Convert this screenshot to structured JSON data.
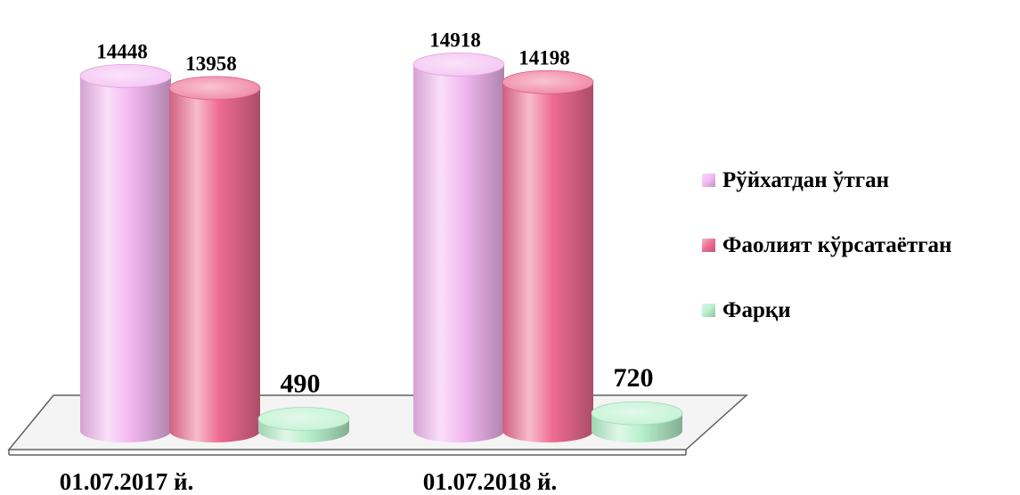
{
  "chart_data": {
    "type": "bar",
    "title": "",
    "xlabel": "",
    "ylabel": "",
    "ylim": [
      0,
      16000
    ],
    "grid": false,
    "legend_position": "right",
    "categories": [
      "01.07.2017 й.",
      "01.07.2018 й."
    ],
    "series": [
      {
        "name": "Рўйхатдан ўтган",
        "values": [
          14448,
          14918
        ],
        "color": "#f3b8f1"
      },
      {
        "name": "Фаолият кўрсатаётган",
        "values": [
          13958,
          14198
        ],
        "color": "#ee6b92"
      },
      {
        "name": "Фарқи",
        "values": [
          490,
          720
        ],
        "color": "#b7f0cb"
      }
    ]
  }
}
